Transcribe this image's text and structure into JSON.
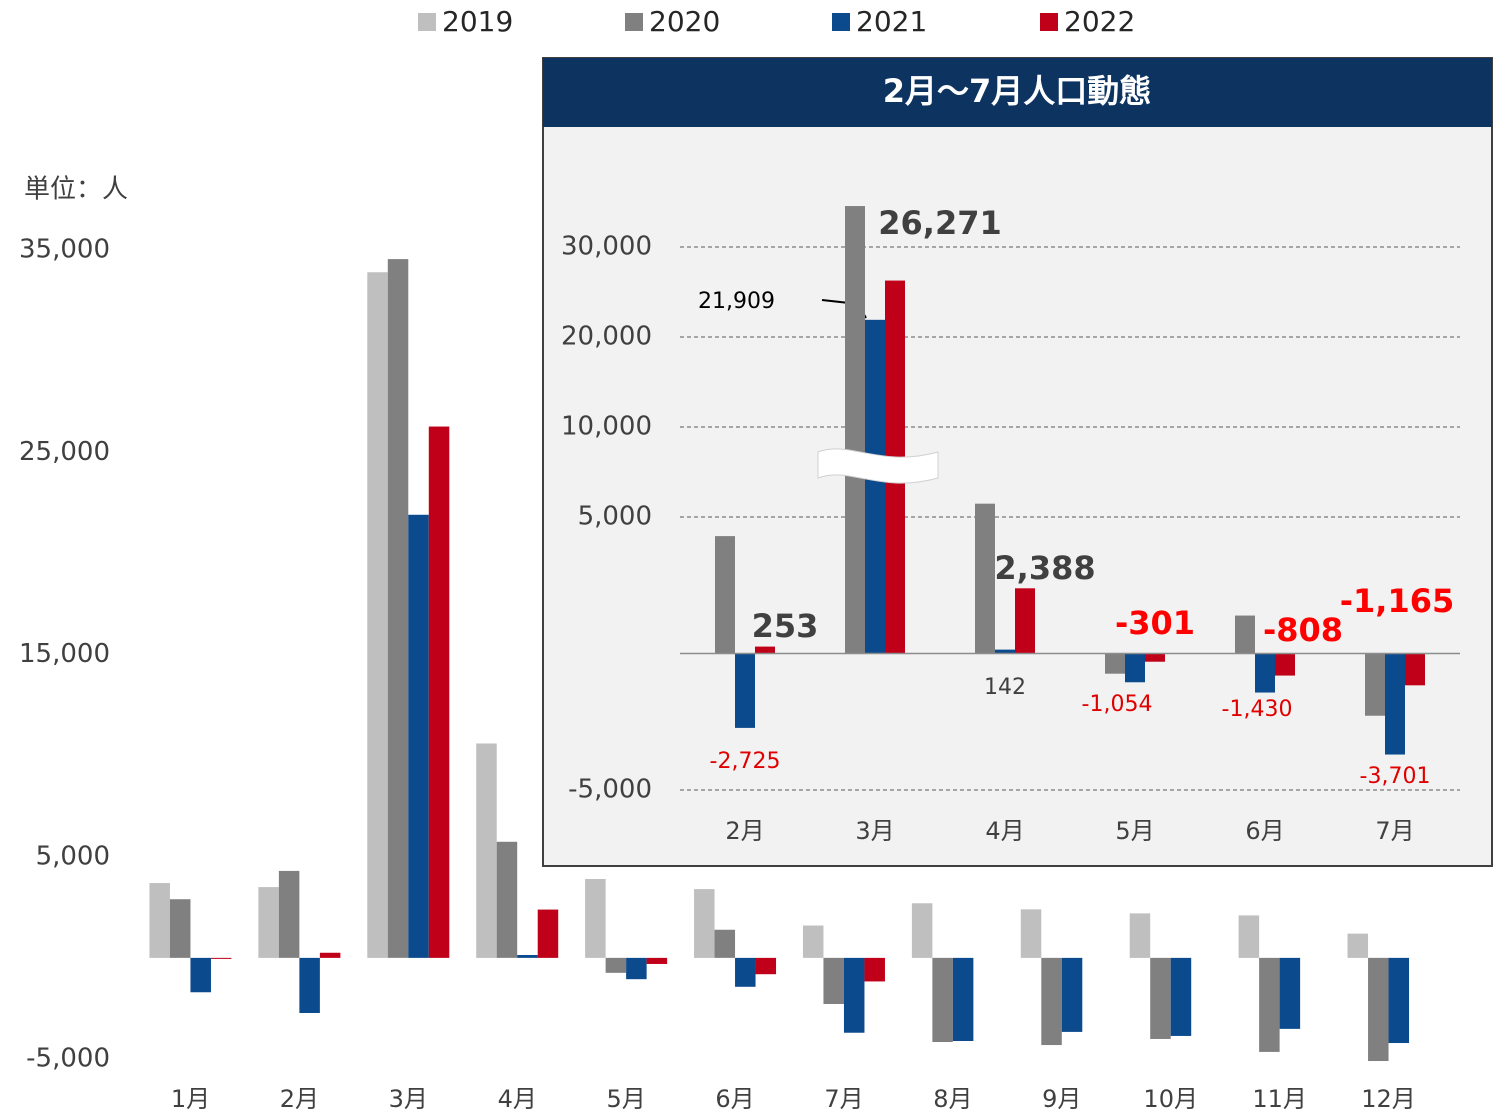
{
  "chart_data": [
    {
      "type": "bar",
      "ylabel": "単位：人",
      "categories": [
        "1月",
        "2月",
        "3月",
        "4月",
        "5月",
        "6月",
        "7月",
        "8月",
        "9月",
        "10月",
        "11月",
        "12月"
      ],
      "series": [
        {
          "name": "2019",
          "color": "#bfbfbf",
          "values": [
            3700,
            3500,
            33900,
            10600,
            3900,
            3400,
            1600,
            2700,
            2400,
            2200,
            2100,
            1200
          ]
        },
        {
          "name": "2020",
          "color": "#808080",
          "values": [
            2900,
            4300,
            34550,
            5740,
            -740,
            1390,
            -2280,
            -4160,
            -4310,
            -4010,
            -4650,
            -5100
          ]
        },
        {
          "name": "2021",
          "color": "#0b4a8c",
          "values": [
            -1700,
            -2725,
            21909,
            142,
            -1054,
            -1430,
            -3701,
            -4110,
            -3660,
            -3860,
            -3510,
            -4210
          ]
        },
        {
          "name": "2022",
          "color": "#c00018",
          "values": [
            -50,
            253,
            26271,
            2388,
            -301,
            -808,
            -1165,
            null,
            null,
            null,
            null,
            null
          ]
        }
      ],
      "ylim": [
        -5000,
        35000
      ],
      "yticks": [
        {
          "value": -5000,
          "label": "-5,000"
        },
        {
          "value": 5000,
          "label": "5,000"
        },
        {
          "value": 15000,
          "label": "15,000"
        },
        {
          "value": 25000,
          "label": "25,000"
        },
        {
          "value": 35000,
          "label": "35,000"
        }
      ],
      "legend": "top"
    },
    {
      "type": "bar",
      "title": "2月～7月人口動態",
      "categories": [
        "2月",
        "3月",
        "4月",
        "5月",
        "6月",
        "7月"
      ],
      "series": [
        {
          "color": "#808080",
          "values": [
            4300,
            34550,
            5740,
            -740,
            1390,
            -2280
          ]
        },
        {
          "color": "#0b4a8c",
          "values": [
            -2725,
            21909,
            142,
            -1054,
            -1430,
            -3701
          ],
          "value_labels": [
            "-2,725",
            "21,909",
            "142",
            "-1,054",
            "-1,430",
            "-3,701"
          ]
        },
        {
          "color": "#c00018",
          "values": [
            253,
            26271,
            2388,
            -301,
            -808,
            -1165
          ],
          "value_labels": [
            "253",
            "26,271",
            "2,388",
            "-301",
            "-808",
            "-1,165"
          ]
        }
      ],
      "ylim": [
        -5000,
        35000
      ],
      "yticks": [
        {
          "value": -5000,
          "label": "-5,000"
        },
        {
          "value": 5000,
          "label": "5,000"
        },
        {
          "value": 10000,
          "label": "10,000"
        },
        {
          "value": 20000,
          "label": "20,000"
        },
        {
          "value": 30000,
          "label": "30,000"
        }
      ],
      "axis_break": true,
      "grid": true
    }
  ]
}
